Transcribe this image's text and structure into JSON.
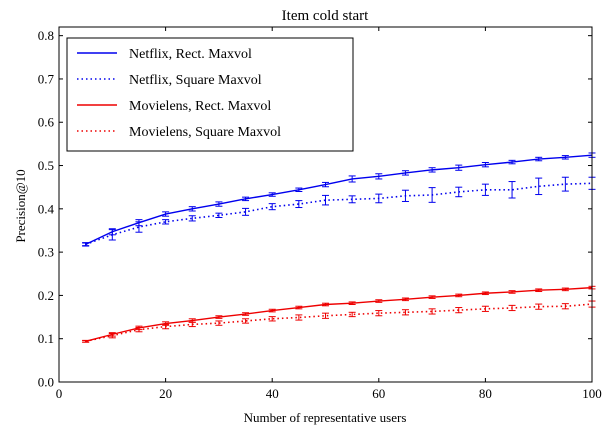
{
  "chart_data": {
    "type": "line",
    "title": "Item cold start",
    "xlabel": "Number of representative users",
    "ylabel": "Precision@10",
    "xlim": [
      0,
      100
    ],
    "ylim": [
      0,
      0.82
    ],
    "xticks": [
      "0",
      "20",
      "40",
      "60",
      "80",
      "100"
    ],
    "yticks": [
      "0.0",
      "0.1",
      "0.2",
      "0.3",
      "0.4",
      "0.5",
      "0.6",
      "0.7",
      "0.8"
    ],
    "grid": false,
    "legend_position": "top-left",
    "x": [
      5,
      10,
      15,
      20,
      25,
      30,
      35,
      40,
      45,
      50,
      55,
      60,
      65,
      70,
      75,
      80,
      85,
      90,
      95,
      100
    ],
    "series": [
      {
        "name": "Netflix, Rect. Maxvol",
        "color": "#0000ee",
        "style": "solid",
        "values": [
          0.318,
          0.347,
          0.368,
          0.388,
          0.4,
          0.411,
          0.423,
          0.433,
          0.444,
          0.456,
          0.469,
          0.475,
          0.483,
          0.49,
          0.495,
          0.502,
          0.508,
          0.515,
          0.519,
          0.524
        ],
        "errors": [
          0.004,
          0.007,
          0.007,
          0.005,
          0.005,
          0.005,
          0.004,
          0.004,
          0.004,
          0.005,
          0.007,
          0.006,
          0.005,
          0.005,
          0.006,
          0.005,
          0.004,
          0.004,
          0.004,
          0.005
        ]
      },
      {
        "name": "Netflix, Square Maxvol",
        "color": "#0000ee",
        "style": "dotted",
        "values": [
          0.318,
          0.34,
          0.358,
          0.37,
          0.378,
          0.385,
          0.393,
          0.405,
          0.411,
          0.42,
          0.422,
          0.424,
          0.43,
          0.432,
          0.439,
          0.444,
          0.444,
          0.452,
          0.457,
          0.459
        ],
        "errors": [
          0.003,
          0.012,
          0.012,
          0.005,
          0.006,
          0.005,
          0.008,
          0.007,
          0.008,
          0.011,
          0.008,
          0.01,
          0.013,
          0.017,
          0.011,
          0.013,
          0.019,
          0.019,
          0.016,
          0.014
        ]
      },
      {
        "name": "Movielens, Rect. Maxvol",
        "color": "#ee0000",
        "style": "solid",
        "values": [
          0.094,
          0.11,
          0.125,
          0.135,
          0.142,
          0.15,
          0.157,
          0.165,
          0.172,
          0.179,
          0.182,
          0.187,
          0.191,
          0.196,
          0.2,
          0.205,
          0.208,
          0.212,
          0.214,
          0.218
        ],
        "errors": [
          0.002,
          0.004,
          0.004,
          0.004,
          0.004,
          0.003,
          0.003,
          0.003,
          0.003,
          0.003,
          0.003,
          0.003,
          0.003,
          0.003,
          0.003,
          0.003,
          0.003,
          0.003,
          0.003,
          0.003
        ]
      },
      {
        "name": "Movielens, Square Maxvol",
        "color": "#ee0000",
        "style": "dotted",
        "values": [
          0.094,
          0.107,
          0.121,
          0.128,
          0.133,
          0.136,
          0.141,
          0.146,
          0.149,
          0.153,
          0.156,
          0.159,
          0.161,
          0.163,
          0.166,
          0.169,
          0.171,
          0.174,
          0.175,
          0.18
        ],
        "errors": [
          0.002,
          0.005,
          0.005,
          0.005,
          0.005,
          0.005,
          0.005,
          0.005,
          0.006,
          0.006,
          0.005,
          0.006,
          0.006,
          0.006,
          0.006,
          0.006,
          0.006,
          0.006,
          0.006,
          0.007
        ]
      }
    ]
  }
}
